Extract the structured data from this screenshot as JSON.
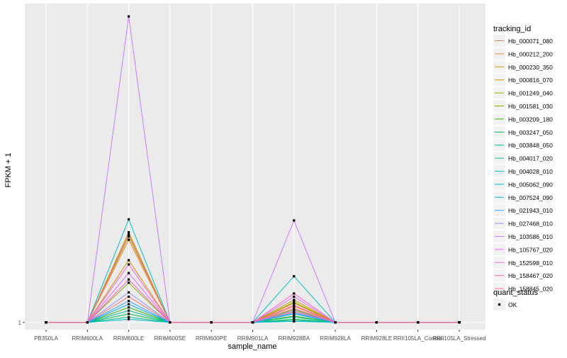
{
  "chart_data": {
    "type": "line",
    "xlabel": "sample_name",
    "ylabel": "FPKM + 1",
    "categories": [
      "PB350LA",
      "RRIM600LA",
      "RRIM600LE",
      "RRIM600SE",
      "RRIM600PE",
      "RRIM901LA",
      "RRIM928BA",
      "RRIM928LA",
      "RRIM928LE",
      "RRII105LA_Control",
      "RRII105LA_Stressed"
    ],
    "y_ticks": [
      "1"
    ],
    "grid": true,
    "legend": {
      "placement": "right",
      "title": "tracking_id",
      "quant_title": "quant_status",
      "quant_items": [
        "OK"
      ]
    },
    "series": [
      {
        "name": "Hb_000071_080",
        "color": "#F8766D",
        "values": [
          1,
          1,
          3.4,
          1,
          1,
          1,
          2.0,
          1,
          1,
          1,
          1
        ]
      },
      {
        "name": "Hb_000212_200",
        "color": "#EA8331",
        "values": [
          1,
          1,
          8.7,
          1,
          1,
          1,
          2.5,
          1,
          1,
          1,
          1
        ]
      },
      {
        "name": "Hb_000230_350",
        "color": "#D89000",
        "values": [
          1,
          1,
          6.8,
          1,
          1,
          1,
          2.8,
          1,
          1,
          1,
          1
        ]
      },
      {
        "name": "Hb_000816_070",
        "color": "#C09B00",
        "values": [
          1,
          1,
          9.4,
          1,
          1,
          1,
          3.1,
          1,
          1,
          1,
          1
        ]
      },
      {
        "name": "Hb_001249_040",
        "color": "#A3A500",
        "values": [
          1,
          1,
          9.0,
          1,
          1,
          1,
          2.9,
          1,
          1,
          1,
          1
        ]
      },
      {
        "name": "Hb_001581_030",
        "color": "#7CAE00",
        "values": [
          1,
          1,
          4.7,
          1,
          1,
          1,
          2.2,
          1,
          1,
          1,
          1
        ]
      },
      {
        "name": "Hb_003209_180",
        "color": "#39B600",
        "values": [
          1,
          1,
          2.4,
          1,
          1,
          1,
          1.6,
          1,
          1,
          1,
          1
        ]
      },
      {
        "name": "Hb_003247_050",
        "color": "#00BB4E",
        "values": [
          1,
          1,
          1.8,
          1,
          1,
          1,
          1.3,
          1,
          1,
          1,
          1
        ]
      },
      {
        "name": "Hb_003848_050",
        "color": "#00BF7D",
        "values": [
          1,
          1,
          1.5,
          1,
          1,
          1,
          1.2,
          1,
          1,
          1,
          1
        ]
      },
      {
        "name": "Hb_004017_020",
        "color": "#00C1A3",
        "values": [
          1,
          1,
          2.1,
          1,
          1,
          1,
          1.5,
          1,
          1,
          1,
          1
        ]
      },
      {
        "name": "Hb_004028_010",
        "color": "#00BFC4",
        "values": [
          1,
          1,
          10.6,
          1,
          1,
          1,
          5.3,
          1,
          1,
          1,
          1
        ]
      },
      {
        "name": "Hb_005062_090",
        "color": "#00BAE0",
        "values": [
          1,
          1,
          1.3,
          1,
          1,
          1,
          1.1,
          1,
          1,
          1,
          1
        ]
      },
      {
        "name": "Hb_007524_090",
        "color": "#00B0F6",
        "values": [
          1,
          1,
          2.7,
          1,
          1,
          1,
          1.8,
          1,
          1,
          1,
          1
        ]
      },
      {
        "name": "Hb_021943_010",
        "color": "#35A2FF",
        "values": [
          1,
          1,
          3.0,
          1,
          1,
          1,
          1.9,
          1,
          1,
          1,
          1
        ]
      },
      {
        "name": "Hb_027468_010",
        "color": "#9590FF",
        "values": [
          1,
          1,
          3.8,
          1,
          1,
          1,
          2.1,
          1,
          1,
          1,
          1
        ]
      },
      {
        "name": "Hb_103586_010",
        "color": "#C77CFF",
        "values": [
          1,
          1,
          29.5,
          1,
          1,
          1,
          10.5,
          1,
          1,
          1,
          1
        ]
      },
      {
        "name": "Hb_105767_020",
        "color": "#E76BF3",
        "values": [
          1,
          1,
          5.6,
          1,
          1,
          1,
          3.4,
          1,
          1,
          1,
          1
        ]
      },
      {
        "name": "Hb_152598_010",
        "color": "#FA62DB",
        "values": [
          1,
          1,
          6.4,
          1,
          1,
          1,
          3.7,
          1,
          1,
          1,
          1
        ]
      },
      {
        "name": "Hb_158467_020",
        "color": "#FF62BC",
        "values": [
          1,
          1,
          5.0,
          1,
          1,
          1,
          2.6,
          1,
          1,
          1,
          1
        ]
      },
      {
        "name": "Hb_158845_020",
        "color": "#FF6C91",
        "values": [
          1,
          1,
          9.2,
          1,
          1,
          1,
          2.3,
          1,
          1,
          1,
          1
        ]
      }
    ]
  }
}
